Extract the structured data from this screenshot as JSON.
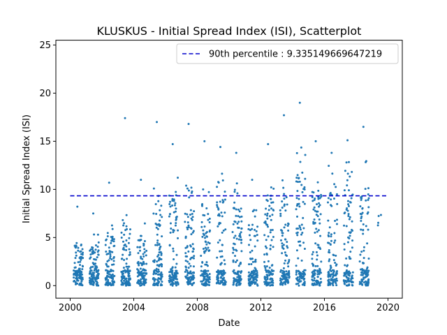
{
  "chart_data": {
    "type": "scatter",
    "title": "KLUSKUS - Initial Spread Index (ISI), Scatterplot",
    "xlabel": "Date",
    "ylabel": "Initial Spread Index (ISI)",
    "xlim": [
      1999.1,
      2020.9
    ],
    "ylim": [
      -1.3,
      25.5
    ],
    "x_ticks": [
      2000,
      2004,
      2008,
      2012,
      2016,
      2020
    ],
    "y_ticks": [
      0,
      5,
      10,
      15,
      20,
      25
    ],
    "grid": false,
    "legend_position": "top-right",
    "reference_line": {
      "label": "90th percentile : 9.335149669647219",
      "y": 9.335149669647219,
      "x_range": [
        2000.0,
        2020.0
      ],
      "color": "#0000cc",
      "style": "dashed"
    },
    "series_color": "#1f77b4",
    "seasons": [
      {
        "year": 2000,
        "max": 8.2,
        "peak": 5.7
      },
      {
        "year": 2001,
        "max": 7.5,
        "peak": 5.5
      },
      {
        "year": 2002,
        "max": 10.7,
        "peak": 7.0
      },
      {
        "year": 2003,
        "max": 17.4,
        "peak": 8.0
      },
      {
        "year": 2004,
        "max": 11.0,
        "peak": 6.5
      },
      {
        "year": 2005,
        "max": 17.0,
        "peak": 10.2
      },
      {
        "year": 2006,
        "max": 14.7,
        "peak": 12.0
      },
      {
        "year": 2007,
        "max": 16.8,
        "peak": 10.5
      },
      {
        "year": 2008,
        "max": 15.0,
        "peak": 10.0
      },
      {
        "year": 2009,
        "max": 14.4,
        "peak": 12.0
      },
      {
        "year": 2010,
        "max": 13.8,
        "peak": 11.0
      },
      {
        "year": 2011,
        "max": 11.0,
        "peak": 8.5
      },
      {
        "year": 2012,
        "max": 14.7,
        "peak": 12.5
      },
      {
        "year": 2013,
        "max": 17.7,
        "peak": 12.5
      },
      {
        "year": 2014,
        "max": 19.0,
        "peak": 15.5
      },
      {
        "year": 2015,
        "max": 15.0,
        "peak": 13.0
      },
      {
        "year": 2016,
        "max": 13.8,
        "peak": 13.0
      },
      {
        "year": 2017,
        "max": 15.1,
        "peak": 13.0
      },
      {
        "year": 2018,
        "max": 16.5,
        "peak": 13.0
      },
      {
        "year": 2019,
        "max": 7.4,
        "peak": 7.0
      }
    ]
  }
}
